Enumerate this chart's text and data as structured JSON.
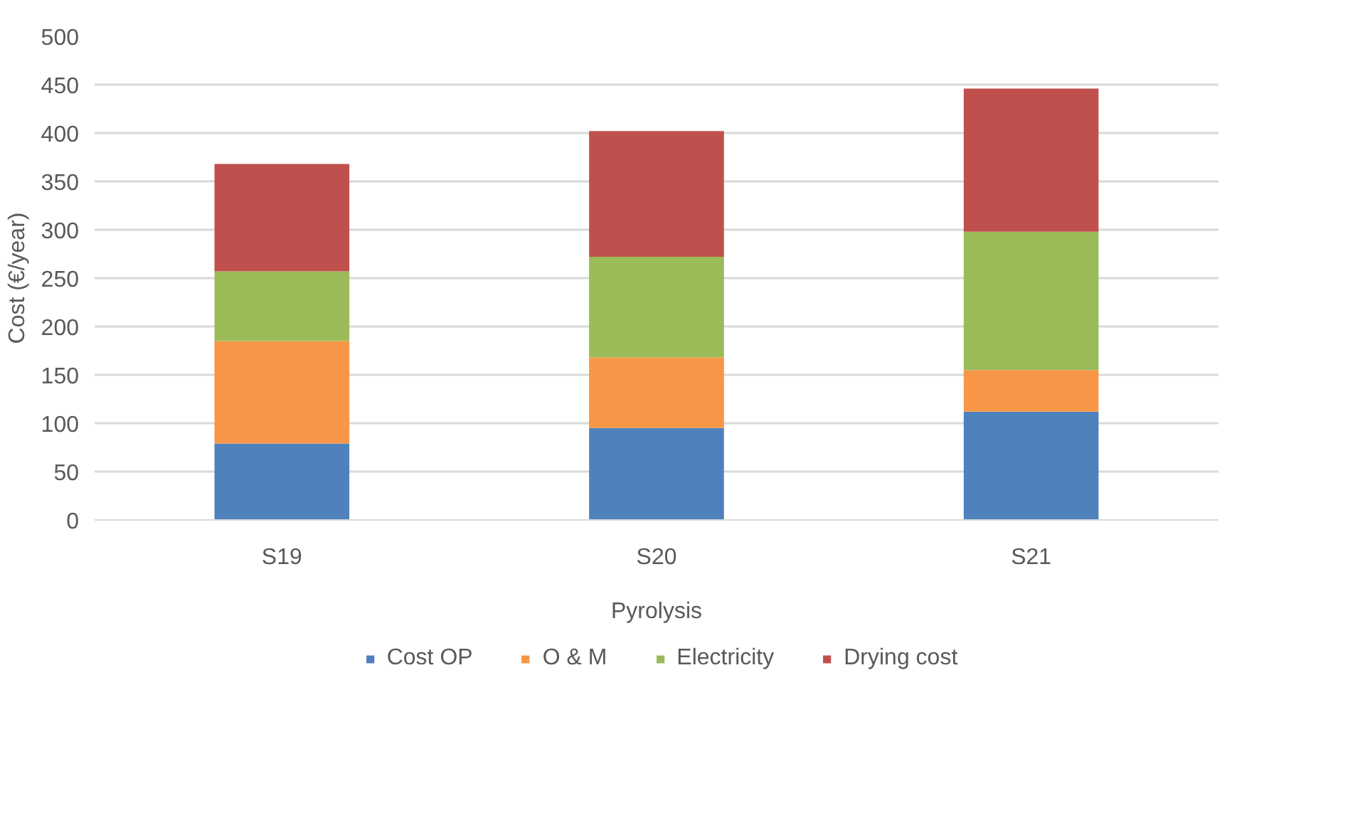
{
  "chart_data": {
    "type": "bar",
    "stacked": true,
    "xlabel": "Pyrolysis",
    "ylabel": "Cost (€/year)",
    "categories": [
      "S19",
      "S20",
      "S21"
    ],
    "series": [
      {
        "name": "Cost OP",
        "color": "#4f81bd",
        "values": [
          79,
          95,
          112
        ]
      },
      {
        "name": "O & M",
        "color": "#f79646",
        "values": [
          106,
          73,
          43
        ]
      },
      {
        "name": "Electricity",
        "color": "#9bbb59",
        "values": [
          72,
          104,
          143
        ]
      },
      {
        "name": "Drying cost",
        "color": "#c0504d",
        "values": [
          111,
          130,
          148
        ]
      }
    ],
    "ylim": [
      0,
      500
    ],
    "yticks": [
      0,
      50,
      100,
      150,
      200,
      250,
      300,
      350,
      400,
      450,
      500
    ],
    "grid": "y",
    "legend": "bottom"
  }
}
